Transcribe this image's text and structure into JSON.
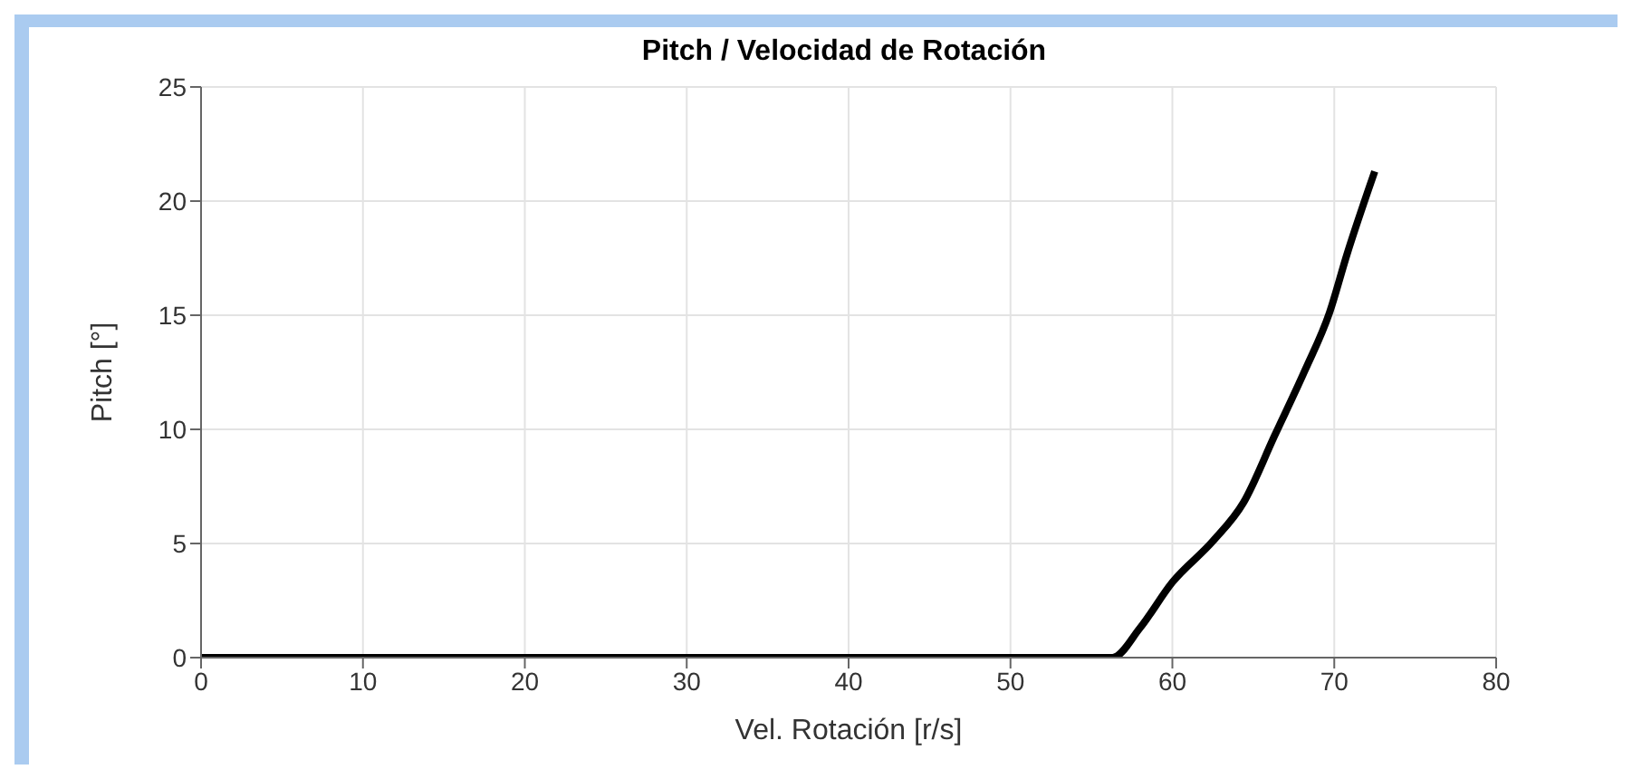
{
  "chart_data": {
    "type": "line",
    "title": "Pitch / Velocidad de Rotación",
    "xlabel": "Vel. Rotación [r/s]",
    "ylabel": "Pitch [°]",
    "grid": true,
    "xlim": [
      0,
      80
    ],
    "xticks": [
      0,
      10,
      20,
      30,
      40,
      50,
      60,
      70,
      80
    ],
    "ylim": [
      0,
      25
    ],
    "yticks": [
      0,
      5,
      10,
      15,
      20,
      25
    ],
    "series": [
      {
        "color": "#000000",
        "x": [
          0,
          56.3,
          58,
          60,
          62.5,
          64.4,
          66.3,
          68.2,
          69.7,
          70.8,
          72.5
        ],
        "values": [
          0,
          0,
          1.3,
          3.3,
          5.1,
          6.8,
          9.7,
          12.6,
          15.1,
          17.7,
          21.3
        ]
      }
    ]
  }
}
